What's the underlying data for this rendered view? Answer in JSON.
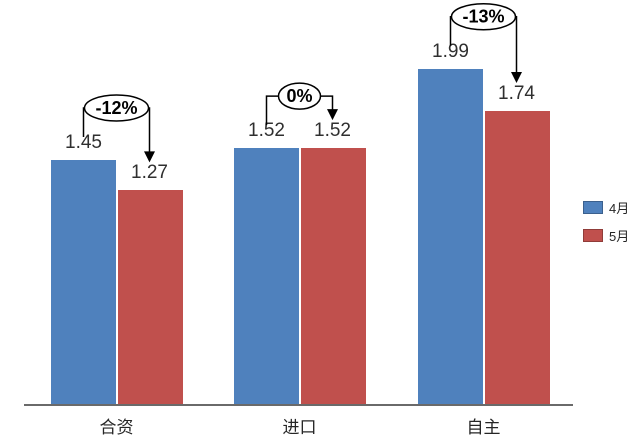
{
  "chart_data": {
    "type": "bar",
    "categories": [
      "合资",
      "进口",
      "自主"
    ],
    "series": [
      {
        "name": "4月",
        "color": "#4F81BD",
        "values": [
          1.45,
          1.52,
          1.99
        ]
      },
      {
        "name": "5月",
        "color": "#C0504D",
        "values": [
          1.27,
          1.52,
          1.74
        ]
      }
    ],
    "annotations": [
      {
        "category": "合资",
        "label": "-12%"
      },
      {
        "category": "进口",
        "label": "0%"
      },
      {
        "category": "自主",
        "label": "-13%"
      }
    ],
    "value_label_format": "2-decimals",
    "ylim": [
      0,
      2.4
    ],
    "grid": false,
    "legend_position": "right",
    "title": "",
    "xlabel": "",
    "ylabel": ""
  },
  "colors": {
    "axis_line": "#6A6A6A",
    "value_text": "#2F2F2F",
    "annotation_stroke": "#000000",
    "annotation_fill": "#FFFFFF"
  }
}
